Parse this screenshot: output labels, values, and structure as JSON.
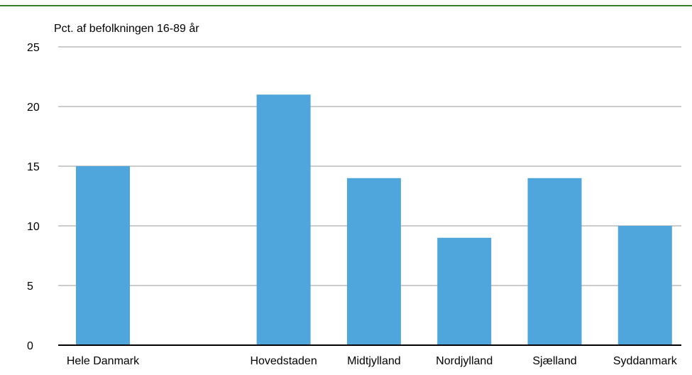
{
  "colors": {
    "top_rule": "#3a7d2c",
    "bar": "#4ea6dc",
    "grid": "#9a9a9a",
    "axis": "#000000"
  },
  "chart_data": {
    "type": "bar",
    "title": "",
    "ylabel": "Pct. af befolkningen 16-89 år",
    "xlabel": "",
    "ylim": [
      0,
      25
    ],
    "yticks": [
      0,
      5,
      10,
      15,
      20,
      25
    ],
    "grid": true,
    "categories": [
      "Hele Danmark",
      "",
      "Hovedstaden",
      "Midtjylland",
      "Nordjylland",
      "Sjælland",
      "Syddanmark"
    ],
    "values": [
      15,
      null,
      21,
      14,
      9,
      14,
      10
    ]
  }
}
